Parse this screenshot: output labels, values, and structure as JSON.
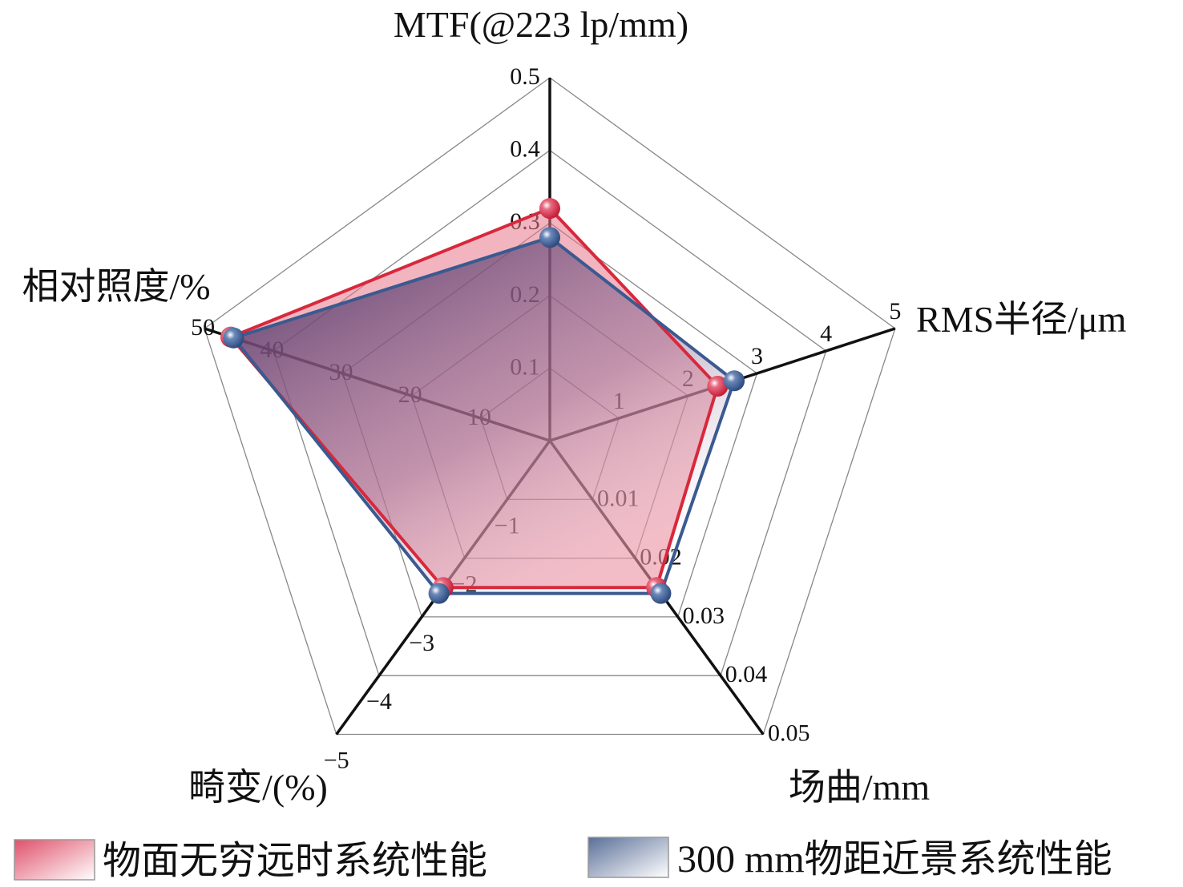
{
  "chart_data": {
    "type": "radar",
    "axes": [
      {
        "label": "MTF(@223 lp/mm)",
        "range": [
          0,
          0.5
        ],
        "ticks": [
          "0.1",
          "0.2",
          "0.3",
          "0.4",
          "0.5"
        ]
      },
      {
        "label": "RMS半径/μm",
        "range": [
          0,
          5
        ],
        "ticks": [
          "1",
          "2",
          "3",
          "4",
          "5"
        ]
      },
      {
        "label": "场曲/mm",
        "range": [
          0,
          0.05
        ],
        "ticks": [
          "0.01",
          "0.02",
          "0.03",
          "0.04",
          "0.05"
        ]
      },
      {
        "label": "畸变/(%)",
        "range": [
          0,
          -5
        ],
        "ticks": [
          "−1",
          "−2",
          "−3",
          "−4",
          "−5"
        ]
      },
      {
        "label": "相对照度/%",
        "range": [
          0,
          50
        ],
        "ticks": [
          "10",
          "20",
          "30",
          "40",
          "50"
        ]
      }
    ],
    "series": [
      {
        "name": "物面无穷远时系统性能",
        "values": [
          0.32,
          2.43,
          0.025,
          -2.5,
          46.2
        ],
        "color": "#d8283c",
        "fill": "#e8788c"
      },
      {
        "name": "300 mm物距近景系统性能",
        "values": [
          0.28,
          2.67,
          0.026,
          -2.6,
          45.8
        ],
        "color": "#3a5a90",
        "fill": "#5a3c70"
      }
    ],
    "grid": true,
    "legend": "bottom"
  }
}
